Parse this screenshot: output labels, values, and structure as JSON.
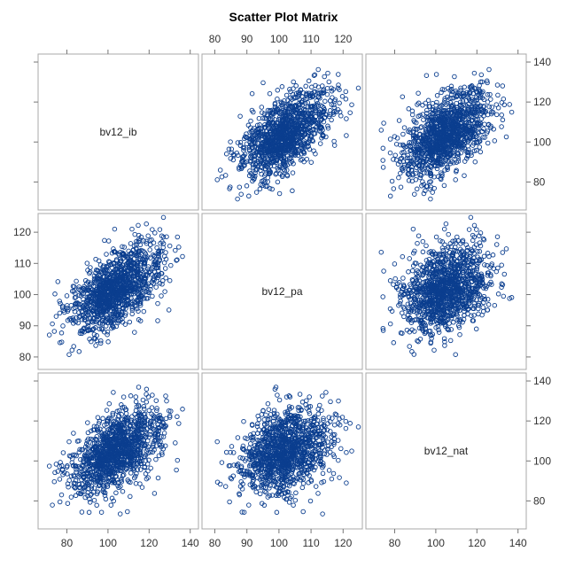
{
  "chart_data": {
    "type": "scatter",
    "title": "Scatter Plot Matrix",
    "variables": [
      "bv12_ib",
      "bv12_pa",
      "bv12_nat"
    ],
    "marker_color": "#0b3e8f",
    "frame_color": "#a8a8a8",
    "point_count": 1200,
    "axes": {
      "bv12_ib": {
        "range": [
          66,
          144
        ],
        "ticks": [
          80,
          100,
          120,
          140
        ]
      },
      "bv12_pa": {
        "range": [
          76,
          126
        ],
        "ticks": [
          80,
          90,
          100,
          110,
          120
        ]
      },
      "bv12_nat": {
        "range": [
          66,
          144
        ],
        "ticks": [
          80,
          100,
          120,
          140
        ]
      }
    },
    "axis_placement": {
      "top": "bv12_pa",
      "bottom": [
        "bv12_ib",
        "bv12_pa",
        "bv12_nat"
      ],
      "left": "bv12_pa",
      "right": [
        "bv12_ib",
        "bv12_nat"
      ]
    },
    "distribution": {
      "means": {
        "bv12_ib": 104,
        "bv12_pa": 102,
        "bv12_nat": 105
      },
      "std_devs": {
        "bv12_ib": 11,
        "bv12_pa": 7,
        "bv12_nat": 11
      },
      "correlations": {
        "ib_pa": 0.6,
        "ib_nat": 0.55,
        "pa_nat": 0.3
      }
    }
  }
}
